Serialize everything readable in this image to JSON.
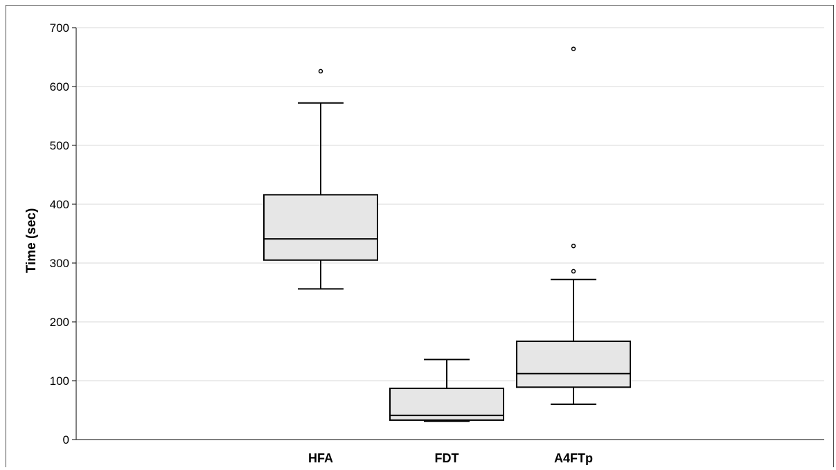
{
  "chart_data": {
    "type": "box",
    "title": "",
    "xlabel": "",
    "ylabel": "Time (sec)",
    "ylim": [
      0,
      700
    ],
    "yticks": [
      0,
      100,
      200,
      300,
      400,
      500,
      600,
      700
    ],
    "grid": true,
    "categories": [
      "HFA",
      "FDT",
      "A4FTp"
    ],
    "boxes": [
      {
        "category": "HFA",
        "whisker_low": 256,
        "q1": 305,
        "median": 341,
        "q3": 416,
        "whisker_high": 572,
        "outliers": [
          626
        ]
      },
      {
        "category": "FDT",
        "whisker_low": 31,
        "q1": 33,
        "median": 41,
        "q3": 87,
        "whisker_high": 136,
        "outliers": []
      },
      {
        "category": "A4FTp",
        "whisker_low": 60,
        "q1": 89,
        "median": 112,
        "q3": 167,
        "whisker_high": 272,
        "outliers": [
          286,
          329,
          664
        ]
      }
    ],
    "colors": {
      "box_fill": "#e6e6e6",
      "stroke": "#000000",
      "grid": "#d9d9d9"
    }
  }
}
